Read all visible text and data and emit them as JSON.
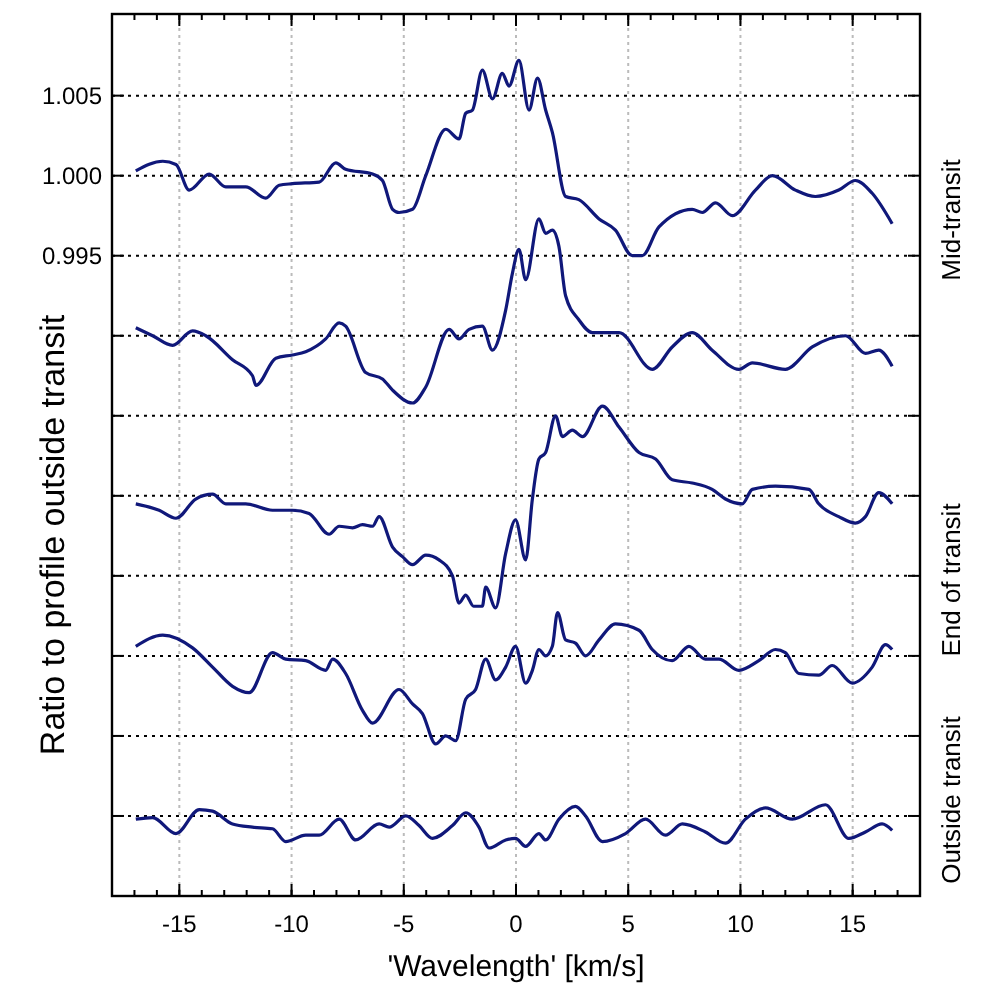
{
  "chart_data": {
    "type": "line",
    "xlabel": "'Wavelength'  [km/s]",
    "ylabel": "Ratio to profile outside transit",
    "annotations": [
      "Mid-transit",
      "End of transit",
      "Outside transit"
    ],
    "xlim": [
      -18,
      18
    ],
    "xticks": [
      -15,
      -10,
      -5,
      0,
      5,
      10,
      15
    ],
    "ylim": [
      0.955,
      1.0101
    ],
    "yticks": [
      {
        "value": 1.005,
        "label": "1.005"
      },
      {
        "value": 1.0,
        "label": "1.000"
      },
      {
        "value": 0.995,
        "label": "0.995"
      },
      {
        "value": 0.99,
        "label": null
      },
      {
        "value": 0.985,
        "label": null
      },
      {
        "value": 0.98,
        "label": null
      },
      {
        "value": 0.975,
        "label": null
      },
      {
        "value": 0.97,
        "label": null
      },
      {
        "value": 0.965,
        "label": null
      },
      {
        "value": 0.96,
        "label": null
      }
    ],
    "grid": true,
    "marker": "none",
    "line_style": "solid",
    "series": [
      {
        "color": "#10187a",
        "x": [
          -16.94,
          -15.74,
          -15.15,
          -14.56,
          -13.67,
          -12.93,
          -12.04,
          -11.15,
          -10.55,
          -9.96,
          -8.77,
          -8.03,
          -7.59,
          -6.39,
          -5.95,
          -5.5,
          -5.21,
          -4.61,
          -4.02,
          -3.13,
          -2.54,
          -2.24,
          -1.94,
          -1.5,
          -1.05,
          -0.61,
          -0.31,
          0.13,
          0.58,
          0.96,
          1.32,
          1.62,
          2.21,
          2.8,
          3.7,
          4.43,
          5.18,
          5.62,
          6.37,
          7.85,
          8.3,
          8.89,
          9.64,
          10.67,
          11.42,
          12.45,
          13.34,
          14.38,
          15.12,
          15.87,
          16.76
        ],
        "values": [
          1.0003,
          1.0009,
          1.0007,
          0.9991,
          1.0001,
          0.9993,
          0.9993,
          0.9986,
          0.9994,
          0.9995,
          0.9996,
          1.0008,
          1.0004,
          1.0001,
          0.9997,
          0.9979,
          0.9977,
          0.9979,
          1.0,
          1.0029,
          1.0023,
          1.0039,
          1.0041,
          1.0066,
          1.0048,
          1.0064,
          1.0056,
          1.0072,
          1.0041,
          1.0061,
          1.0041,
          1.0027,
          0.9987,
          0.9985,
          0.9973,
          0.9966,
          0.995,
          0.995,
          0.9968,
          0.9979,
          0.9977,
          0.9983,
          0.9975,
          0.9991,
          1.0,
          0.9991,
          0.9987,
          0.9991,
          0.9997,
          0.9989,
          0.997
        ]
      },
      {
        "color": "#10187a",
        "x": [
          -16.94,
          -16.19,
          -15.3,
          -14.41,
          -13.82,
          -12.63,
          -11.74,
          -11.59,
          -10.7,
          -9.96,
          -9.37,
          -8.48,
          -7.88,
          -7.59,
          -6.7,
          -5.95,
          -5.5,
          -4.61,
          -4.02,
          -2.98,
          -2.54,
          -2.09,
          -1.5,
          -1.05,
          -0.46,
          -0.16,
          0.13,
          0.43,
          1.02,
          1.32,
          1.62,
          1.91,
          2.21,
          2.8,
          3.4,
          4.59,
          6.07,
          6.96,
          7.85,
          8.74,
          9.93,
          10.53,
          12.0,
          13.2,
          14.68,
          15.57,
          16.16,
          16.76
        ],
        "values": [
          0.9905,
          0.99,
          0.9894,
          0.9903,
          0.99,
          0.9885,
          0.9875,
          0.9869,
          0.9886,
          0.9888,
          0.989,
          0.9898,
          0.9908,
          0.9906,
          0.9877,
          0.9873,
          0.9866,
          0.9858,
          0.9868,
          0.9904,
          0.9898,
          0.9904,
          0.9906,
          0.9891,
          0.9916,
          0.9939,
          0.9954,
          0.9935,
          0.9973,
          0.9964,
          0.9966,
          0.9956,
          0.9925,
          0.991,
          0.9902,
          0.9902,
          0.9879,
          0.9893,
          0.9902,
          0.9891,
          0.9879,
          0.9883,
          0.9879,
          0.9893,
          0.99,
          0.9889,
          0.9891,
          0.9881
        ]
      },
      {
        "color": "#10187a",
        "x": [
          -16.94,
          -15.9,
          -15.15,
          -14.27,
          -13.52,
          -12.93,
          -12.04,
          -10.85,
          -9.96,
          -9.22,
          -8.33,
          -7.88,
          -7.28,
          -6.84,
          -6.39,
          -6.1,
          -5.5,
          -5.06,
          -4.61,
          -4.02,
          -3.43,
          -2.83,
          -2.54,
          -2.24,
          -1.89,
          -1.5,
          -1.35,
          -0.91,
          -0.46,
          -0.02,
          0.43,
          0.73,
          1.02,
          1.32,
          1.76,
          2.07,
          2.51,
          2.96,
          3.85,
          4.59,
          5.48,
          6.22,
          6.96,
          7.85,
          8.74,
          9.33,
          10.08,
          10.53,
          11.56,
          13.05,
          13.49,
          14.38,
          15.12,
          15.57,
          16.16,
          16.76
        ],
        "values": [
          0.9795,
          0.9791,
          0.9786,
          0.9798,
          0.9801,
          0.9795,
          0.9795,
          0.9791,
          0.9791,
          0.9789,
          0.9776,
          0.9781,
          0.978,
          0.9782,
          0.9781,
          0.9787,
          0.9768,
          0.9762,
          0.9757,
          0.9763,
          0.976,
          0.975,
          0.9733,
          0.9738,
          0.9731,
          0.9731,
          0.9743,
          0.973,
          0.9764,
          0.9785,
          0.976,
          0.9798,
          0.9823,
          0.9827,
          0.985,
          0.9837,
          0.9841,
          0.9837,
          0.9856,
          0.9843,
          0.9827,
          0.9823,
          0.981,
          0.9808,
          0.9804,
          0.9798,
          0.9795,
          0.9804,
          0.9806,
          0.9804,
          0.9795,
          0.9787,
          0.9783,
          0.9787,
          0.9802,
          0.9795
        ]
      },
      {
        "color": "#10187a",
        "x": [
          -16.94,
          -15.74,
          -14.41,
          -13.52,
          -12.63,
          -11.89,
          -10.85,
          -10.26,
          -9.37,
          -8.48,
          -8.17,
          -7.59,
          -6.84,
          -6.39,
          -5.21,
          -4.61,
          -4.17,
          -3.58,
          -3.13,
          -2.69,
          -2.24,
          -1.8,
          -1.35,
          -0.91,
          -0.46,
          -0.02,
          0.43,
          0.73,
          1.02,
          1.32,
          1.62,
          1.85,
          2.21,
          2.65,
          3.1,
          3.7,
          4.43,
          5.48,
          6.07,
          6.96,
          7.7,
          8.44,
          9.04,
          9.93,
          10.82,
          11.56,
          12.0,
          12.6,
          13.49,
          14.09,
          14.98,
          15.87,
          16.46,
          16.76
        ],
        "values": [
          0.9706,
          0.9713,
          0.9705,
          0.9693,
          0.9681,
          0.9677,
          0.9702,
          0.9698,
          0.9697,
          0.9691,
          0.9698,
          0.9689,
          0.9666,
          0.9658,
          0.9679,
          0.967,
          0.9664,
          0.9645,
          0.965,
          0.9647,
          0.9673,
          0.9679,
          0.9698,
          0.9685,
          0.9693,
          0.9706,
          0.9683,
          0.9691,
          0.9704,
          0.97,
          0.9706,
          0.9727,
          0.971,
          0.9708,
          0.97,
          0.971,
          0.972,
          0.9716,
          0.9704,
          0.9697,
          0.9706,
          0.9698,
          0.9698,
          0.9691,
          0.9697,
          0.9704,
          0.9702,
          0.9689,
          0.9688,
          0.9694,
          0.9683,
          0.9693,
          0.9707,
          0.9704
        ]
      },
      {
        "color": "#10187a",
        "x": [
          -16.94,
          -16.19,
          -15.15,
          -14.11,
          -13.52,
          -12.63,
          -11.74,
          -10.85,
          -10.26,
          -9.37,
          -8.77,
          -7.88,
          -7.14,
          -6.1,
          -5.65,
          -4.91,
          -4.32,
          -3.72,
          -2.83,
          -2.24,
          -1.65,
          -1.2,
          -0.46,
          -0.02,
          0.43,
          1.02,
          1.32,
          1.91,
          2.65,
          3.1,
          3.85,
          4.88,
          5.77,
          6.66,
          7.41,
          8.44,
          9.33,
          10.22,
          11.11,
          12.31,
          13.79,
          14.83,
          15.57,
          16.31,
          16.76
        ],
        "values": [
          0.9598,
          0.9599,
          0.9589,
          0.9604,
          0.9603,
          0.9595,
          0.9593,
          0.9592,
          0.9584,
          0.9588,
          0.9588,
          0.9598,
          0.9585,
          0.9595,
          0.9593,
          0.96,
          0.9594,
          0.9586,
          0.9594,
          0.9602,
          0.9593,
          0.958,
          0.9585,
          0.9586,
          0.9581,
          0.9589,
          0.9585,
          0.9598,
          0.9606,
          0.96,
          0.9584,
          0.9589,
          0.9598,
          0.9588,
          0.9595,
          0.959,
          0.9583,
          0.9598,
          0.9605,
          0.9598,
          0.9607,
          0.9586,
          0.959,
          0.9595,
          0.9591
        ]
      }
    ]
  }
}
